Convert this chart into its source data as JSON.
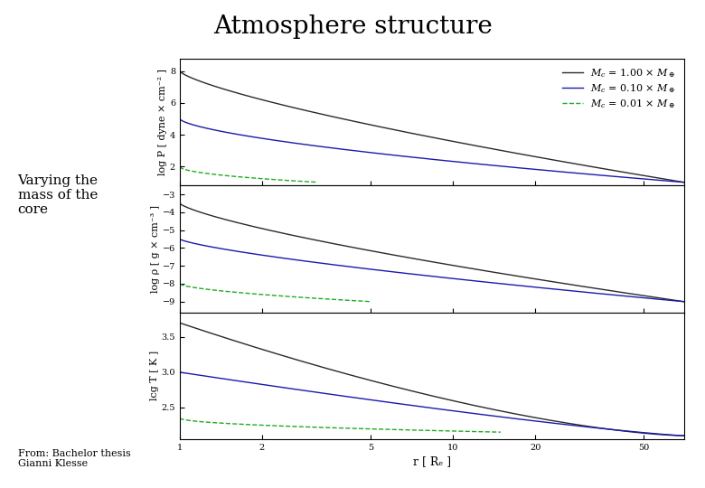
{
  "title": "Atmosphere structure",
  "left_label1": "Varying the\nmass of the\ncore",
  "bottom_label": "From: Bachelor thesis\nGianni Klesse",
  "xlabel": "r [ Rₑ ]",
  "ylabel_top": "log P [ dyne × cm⁻² ]",
  "ylabel_mid": "log ρ [ g × cm⁻³ ]",
  "ylabel_bot": "lcg T [ K ]",
  "legend_labels": [
    "Mₑ = 1.00 × Mₑ",
    "Mₑ = 0.10 × Mₑ",
    "Mₑ = 0.01 × Mₑ"
  ],
  "colors_dark": [
    "#2a2a2a",
    "#1a1aaa",
    "#22aa22"
  ],
  "line_styles": [
    "-",
    "-",
    "--"
  ],
  "r_min": 1,
  "r_max": 70,
  "background_color": "#ffffff",
  "title_fontsize": 20,
  "label_fontsize": 8,
  "tick_fontsize": 7,
  "legend_fontsize": 8,
  "xticks": [
    1,
    2,
    5,
    10,
    20,
    50
  ],
  "panel1_yticks": [
    2,
    4,
    6,
    8
  ],
  "panel1_ylim": [
    0.8,
    8.8
  ],
  "panel2_yticks": [
    -9,
    -8,
    -7,
    -6,
    -5,
    -4,
    -3
  ],
  "panel2_ylim": [
    -9.6,
    -2.5
  ],
  "panel3_yticks": [
    2.5,
    3.0,
    3.5
  ],
  "panel3_ylim": [
    2.05,
    3.85
  ]
}
